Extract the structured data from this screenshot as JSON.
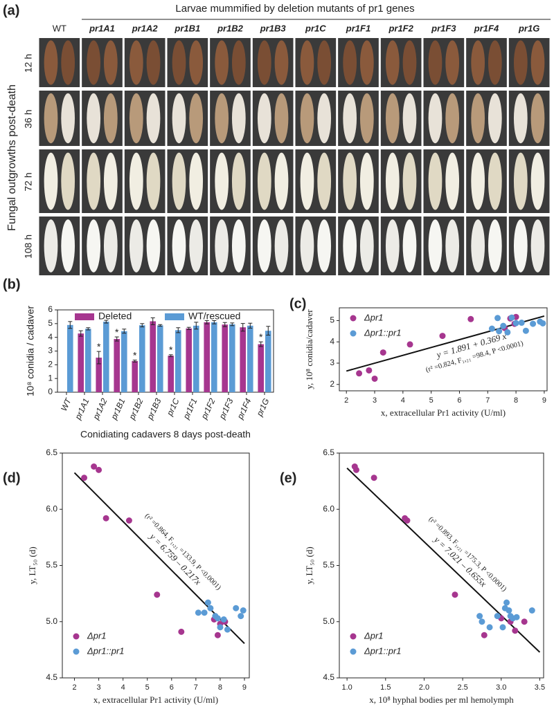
{
  "photo_panel": {
    "label": "(a)",
    "title": "Larvae mummified by deletion mutants of pr1 genes",
    "side_label": "Fungal outgrowths post-death",
    "columns": [
      "WT",
      "pr1A1",
      "pr1A2",
      "pr1B1",
      "pr1B2",
      "pr1B3",
      "pr1C",
      "pr1F1",
      "pr1F2",
      "pr1F3",
      "pr1F4",
      "pr1G"
    ],
    "rows": [
      "12 h",
      "36 h",
      "72 h",
      "108 h"
    ]
  },
  "chart_data": [
    {
      "type": "bar",
      "panel_label": "(b)",
      "y_label": "10⁸ conidia / cadaver",
      "x_label": "Conidiating cadavers 8 days post-death",
      "categories": [
        "WT",
        "pr1A1",
        "pr1A2",
        "pr1B1",
        "pr1B2",
        "pr1B3",
        "pr1C",
        "pr1F1",
        "pr1F2",
        "pr1F3",
        "pr1F4",
        "pr1G"
      ],
      "series": [
        {
          "name": "Deleted",
          "color": "#a6368f",
          "values": [
            null,
            4.28,
            2.52,
            3.88,
            2.27,
            5.17,
            2.66,
            4.65,
            5.1,
            4.93,
            4.73,
            3.5
          ],
          "errors": [
            null,
            0.2,
            0.45,
            0.15,
            0.07,
            0.25,
            0.07,
            0.08,
            0.12,
            0.15,
            0.28,
            0.17
          ],
          "significant": [
            false,
            false,
            true,
            true,
            true,
            false,
            true,
            false,
            false,
            false,
            false,
            true
          ]
        },
        {
          "name": "WT/rescued",
          "color": "#5b9bd5",
          "values": [
            4.9,
            4.62,
            5.14,
            4.45,
            4.88,
            4.87,
            4.52,
            4.85,
            5.1,
            4.95,
            4.85,
            4.48
          ],
          "errors": [
            0.25,
            0.08,
            0.1,
            0.15,
            0.12,
            0.06,
            0.18,
            0.25,
            0.12,
            0.1,
            0.18,
            0.32
          ]
        }
      ],
      "significance_mark": "*",
      "ylim": [
        0,
        6
      ],
      "yticks": [
        0,
        1,
        2,
        3,
        4,
        5,
        6
      ],
      "legend": "top"
    },
    {
      "type": "scatter",
      "panel_label": "(c)",
      "y_label": "y, 10⁸ conidia/cadaver",
      "x_label": "x, extracellular Pr1 activity (U/ml)",
      "xlim": [
        1.75,
        9.1
      ],
      "xticks": [
        2,
        3,
        4,
        5,
        6,
        7,
        8,
        9
      ],
      "ylim": [
        1.7,
        5.6
      ],
      "yticks": [
        2,
        3,
        4,
        5
      ],
      "legend": "upper left",
      "series": [
        {
          "name": "Δpr1",
          "color": "#a6368f",
          "x": [
            2.45,
            2.8,
            3.0,
            3.3,
            4.25,
            5.4,
            6.4,
            7.6,
            7.8,
            7.95,
            8.0
          ],
          "values": [
            2.52,
            2.66,
            2.27,
            3.5,
            3.88,
            4.28,
            5.07,
            4.65,
            5.1,
            4.85,
            5.17
          ]
        },
        {
          "name": "Δpr1::pr1",
          "color": "#5b9bd5",
          "x": [
            7.15,
            7.35,
            7.4,
            7.55,
            7.7,
            7.85,
            8.0,
            8.2,
            8.35,
            8.6,
            8.85,
            8.95
          ],
          "values": [
            4.62,
            5.12,
            4.5,
            4.75,
            4.45,
            5.14,
            4.88,
            4.9,
            4.52,
            4.85,
            4.95,
            4.87
          ]
        }
      ],
      "fit": {
        "intercept": 1.891,
        "slope": 0.369,
        "x_range": [
          2,
          9
        ]
      },
      "fit_label": "y = 1.891 + 0.369 x",
      "fit_stats": "(r² =0.824, F₁,₂₁ =98.4, P <0.0001)"
    },
    {
      "type": "scatter",
      "panel_label": "(d)",
      "y_label": "y, LT₅₀ (d)",
      "x_label": "x, extracellular Pr1 activity (U/ml)",
      "xlim": [
        1.5,
        9.2
      ],
      "xticks": [
        2,
        3,
        4,
        5,
        6,
        7,
        8,
        9
      ],
      "ylim": [
        4.5,
        6.5
      ],
      "yticks": [
        4.5,
        {
          "value": 5,
          "label": "5.0"
        },
        5.5,
        {
          "value": 6,
          "label": "6.0"
        },
        6.5
      ],
      "legend": "lower left",
      "series": [
        {
          "name": "Δpr1",
          "color": "#a6368f",
          "x": [
            2.4,
            2.8,
            3.0,
            3.3,
            4.25,
            5.4,
            6.4,
            7.75,
            7.9,
            8.0,
            8.2
          ],
          "values": [
            6.28,
            6.38,
            6.35,
            5.92,
            5.9,
            5.24,
            4.91,
            5.02,
            4.88,
            4.98,
            5.0
          ]
        },
        {
          "name": "Δpr1::pr1",
          "color": "#5b9bd5",
          "x": [
            7.1,
            7.35,
            7.5,
            7.6,
            7.8,
            7.9,
            8.0,
            8.15,
            8.3,
            8.65,
            8.85,
            8.95
          ],
          "values": [
            5.08,
            5.08,
            5.17,
            5.12,
            5.05,
            5.03,
            4.95,
            5.02,
            4.93,
            5.12,
            5.05,
            5.1
          ]
        }
      ],
      "fit": {
        "intercept": 6.759,
        "slope": -0.217,
        "x_range": [
          2,
          9
        ]
      },
      "fit_label": "y = 6.759 – 0.217x",
      "fit_stats": "(r² =0.864, F₁,₂₁ =133.9, P <0.0001)"
    },
    {
      "type": "scatter",
      "panel_label": "(e)",
      "y_label": "y, LT₅₀ (d)",
      "x_label": "x, 10⁸ hyphal bodies per ml hemolymph",
      "xlim": [
        0.9,
        3.55
      ],
      "xticks": [
        {
          "value": 1,
          "label": "1.0"
        },
        1.5,
        {
          "value": 2,
          "label": "2.0"
        },
        2.5,
        {
          "value": 3,
          "label": "3.0"
        },
        3.5
      ],
      "ylim": [
        4.5,
        6.5
      ],
      "yticks": [
        4.5,
        {
          "value": 5,
          "label": "5.0"
        },
        5.5,
        {
          "value": 6,
          "label": "6.0"
        },
        6.5
      ],
      "legend": "lower left",
      "series": [
        {
          "name": "Δpr1",
          "color": "#a6368f",
          "x": [
            1.1,
            1.12,
            1.35,
            1.75,
            1.78,
            2.4,
            2.78,
            3.0,
            3.12,
            3.18,
            3.3
          ],
          "values": [
            6.38,
            6.35,
            6.28,
            5.92,
            5.9,
            5.24,
            4.88,
            5.03,
            5.0,
            4.92,
            5.0
          ]
        },
        {
          "name": "Δpr1::pr1",
          "color": "#5b9bd5",
          "x": [
            2.72,
            2.75,
            2.85,
            2.95,
            3.02,
            3.05,
            3.07,
            3.1,
            3.12,
            3.15,
            3.2,
            3.4
          ],
          "values": [
            5.05,
            5.0,
            4.95,
            5.05,
            4.95,
            5.12,
            5.17,
            5.1,
            5.05,
            5.03,
            5.04,
            5.1
          ]
        }
      ],
      "fit": {
        "intercept": 7.021,
        "slope": -0.655,
        "x_range": [
          1,
          3.5
        ]
      },
      "fit_label": "y = 7.021 – 0.655x",
      "fit_stats": "(r² =0.893, F₁,₂₁ =175.3, P <0.0001)"
    }
  ]
}
